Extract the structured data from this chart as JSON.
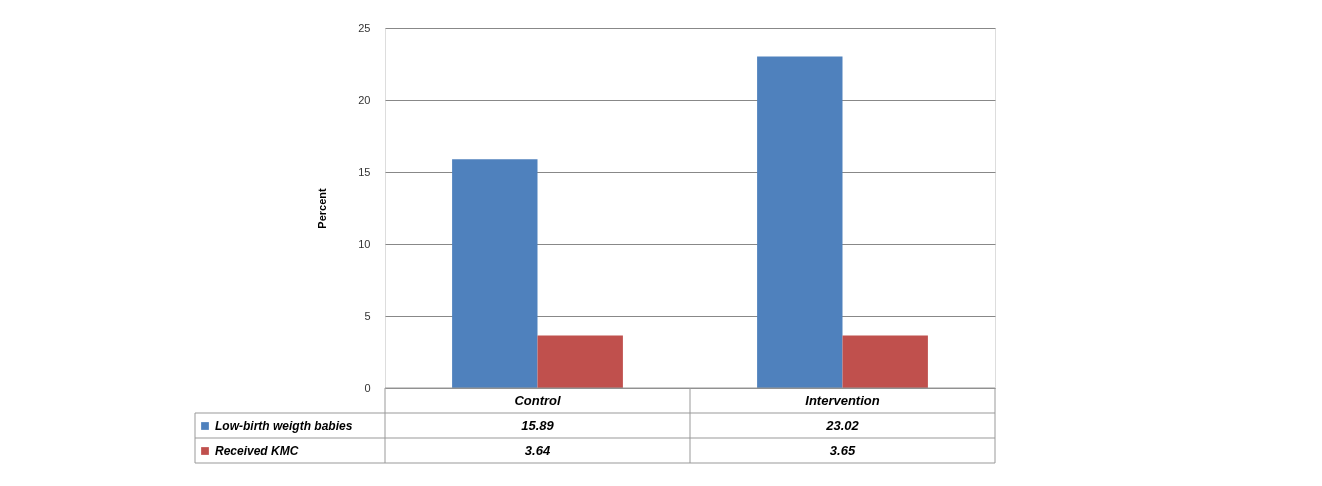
{
  "chart_data": {
    "type": "bar",
    "ylabel": "Percent",
    "categories": [
      "Control",
      "Intervention"
    ],
    "series": [
      {
        "name": "Low-birth weigth babies",
        "color": "#4f81bd",
        "values": [
          15.89,
          23.02
        ]
      },
      {
        "name": "Received KMC",
        "color": "#c0504d",
        "values": [
          3.64,
          3.65
        ]
      }
    ],
    "ylim": [
      0,
      25
    ],
    "yticks": [
      0,
      5,
      10,
      15,
      20,
      25
    ],
    "grid": "y",
    "legend": "bottom",
    "data_labels": true
  }
}
